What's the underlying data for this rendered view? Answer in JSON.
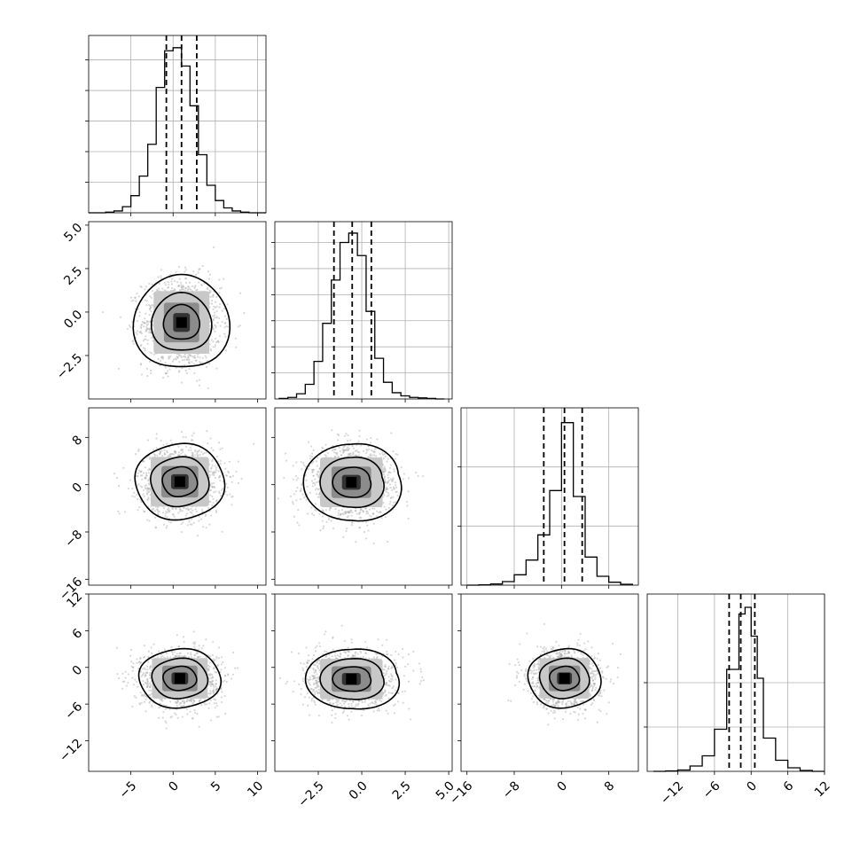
{
  "chart_data": {
    "type": "corner",
    "n_dims": 4,
    "grid": true,
    "colors": {
      "hist": "#000000",
      "scatter": "#a9a9a9",
      "contour": "#000000",
      "grid": "#b0b0b0"
    },
    "dims": [
      {
        "range": [
          -10,
          11
        ],
        "ticks": [
          -5,
          0,
          5,
          10
        ],
        "tick_labels": [
          "−5",
          "0",
          "5",
          "10"
        ]
      },
      {
        "range": [
          -5,
          5.2
        ],
        "ticks": [
          -2.5,
          0,
          2.5,
          5
        ],
        "tick_labels": [
          "−2.5",
          "0.0",
          "2.5",
          "5.0"
        ]
      },
      {
        "range": [
          -17,
          13
        ],
        "ticks": [
          -16,
          -8,
          0,
          8
        ],
        "tick_labels": [
          "−16",
          "−8",
          "0",
          "8"
        ]
      },
      {
        "range": [
          -17,
          12
        ],
        "ticks": [
          -12,
          -6,
          0,
          6,
          12
        ],
        "tick_labels": [
          "−12",
          "−6",
          "0",
          "6",
          "12"
        ]
      }
    ],
    "y_label_dims": [
      {
        "ticks": [
          -2.5,
          0,
          2.5,
          5
        ],
        "tick_labels": [
          "−2.5",
          "0.0",
          "2.5",
          "5.0"
        ]
      },
      {
        "ticks": [
          -16,
          -8,
          0,
          8
        ],
        "tick_labels": [
          "−16",
          "−8",
          "0",
          "8"
        ]
      },
      {
        "ticks": [
          -12,
          -6,
          0,
          6,
          12
        ],
        "tick_labels": [
          "−12",
          "−6",
          "0",
          "6",
          "12"
        ]
      }
    ],
    "histograms": [
      {
        "edges": [
          -10,
          -8,
          -7,
          -6,
          -5,
          -4,
          -3,
          -2,
          -1,
          0,
          1,
          2,
          3,
          4,
          5,
          6,
          7,
          8,
          9,
          10,
          11
        ],
        "counts": [
          0,
          1,
          3,
          10,
          28,
          60,
          112,
          205,
          265,
          270,
          240,
          175,
          95,
          45,
          20,
          8,
          3,
          1,
          0,
          0
        ],
        "ymax": 290,
        "yticks": [
          50,
          100,
          150,
          200,
          250
        ],
        "quantiles": [
          -0.8,
          1.0,
          2.8
        ]
      },
      {
        "edges": [
          -4.75,
          -4.25,
          -3.75,
          -3.25,
          -2.75,
          -2.25,
          -1.75,
          -1.25,
          -0.75,
          -0.25,
          0.25,
          0.75,
          1.25,
          1.75,
          2.25,
          2.75,
          3.25,
          3.75,
          4.25,
          4.75
        ],
        "counts": [
          1,
          3,
          10,
          28,
          72,
          145,
          228,
          300,
          318,
          275,
          168,
          78,
          32,
          12,
          6,
          3,
          2,
          1,
          0
        ],
        "ymax": 340,
        "yticks": [
          50,
          100,
          150,
          200,
          250,
          300
        ],
        "quantiles": [
          -1.6,
          -0.55,
          0.55
        ]
      },
      {
        "edges": [
          -16,
          -14,
          -12,
          -10,
          -8,
          -6,
          -4,
          -2,
          0,
          2,
          4,
          6,
          8,
          10,
          12
        ],
        "counts": [
          0,
          1,
          4,
          12,
          35,
          85,
          170,
          320,
          550,
          300,
          95,
          30,
          10,
          3
        ],
        "ymax": 600,
        "yticks": [
          200,
          400
        ],
        "quantiles": [
          -3.0,
          0.5,
          3.5
        ]
      },
      {
        "edges": [
          -16,
          -14,
          -12,
          -10,
          -8,
          -6,
          -4,
          -2,
          -1,
          0,
          1,
          2,
          4,
          6,
          8,
          10,
          12
        ],
        "counts": [
          0,
          1,
          3,
          12,
          35,
          95,
          230,
          355,
          370,
          305,
          210,
          75,
          25,
          8,
          2,
          0
        ],
        "ymax": 400,
        "yticks": [
          100,
          200
        ],
        "quantiles": [
          -3.6,
          -1.7,
          0.6
        ]
      }
    ],
    "pairs": [
      {
        "x": 0,
        "y": 1,
        "center": [
          1.0,
          -0.6
        ],
        "sigma": [
          2.2,
          1.2
        ],
        "levels_sigma": [
          0.9,
          1.5,
          2.4
        ],
        "shape": "rounded-diamond"
      },
      {
        "x": 0,
        "y": 2,
        "center": [
          0.8,
          0.5
        ],
        "sigma": [
          2.3,
          2.8
        ],
        "levels_sigma": [
          0.9,
          1.5,
          2.3
        ],
        "shape": "ellipse"
      },
      {
        "x": 1,
        "y": 2,
        "center": [
          -0.6,
          0.4
        ],
        "sigma": [
          1.2,
          2.8
        ],
        "levels_sigma": [
          0.9,
          1.5,
          2.3
        ],
        "shape": "skewed-right"
      },
      {
        "x": 0,
        "y": 3,
        "center": [
          0.8,
          -1.8
        ],
        "sigma": [
          2.2,
          2.2
        ],
        "levels_sigma": [
          0.9,
          1.5,
          2.2
        ],
        "shape": "ellipse"
      },
      {
        "x": 1,
        "y": 3,
        "center": [
          -0.6,
          -1.9
        ],
        "sigma": [
          1.2,
          2.2
        ],
        "levels_sigma": [
          0.9,
          1.5,
          2.2
        ],
        "shape": "skewed-right"
      },
      {
        "x": 2,
        "y": 3,
        "center": [
          0.5,
          -1.8
        ],
        "sigma": [
          2.8,
          2.2
        ],
        "levels_sigma": [
          0.9,
          1.5,
          2.2
        ],
        "shape": "ellipse"
      }
    ]
  }
}
